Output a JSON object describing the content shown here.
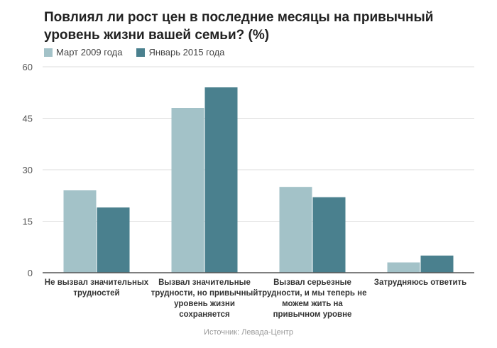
{
  "title": "Повлиял ли рост цен в последние месяцы на привычный уровень жизни вашей семьи? (%)",
  "source": "Источник: Левада-Центр",
  "colors": {
    "series1": "#a3c2c8",
    "series2": "#4a808e",
    "grid": "#dddddd",
    "axis": "#555555"
  },
  "chart_data": {
    "type": "bar",
    "title": "Повлиял ли рост цен в последние месяцы на привычный уровень жизни вашей семьи? (%)",
    "xlabel": "",
    "ylabel": "",
    "ylim": [
      0,
      60
    ],
    "yticks": [
      "60",
      "45",
      "30",
      "15",
      "0"
    ],
    "ytick_values": [
      60,
      45,
      30,
      15,
      0
    ],
    "grid": true,
    "legend": "top-left",
    "categories": [
      [
        "Не вызвал значительных",
        "трудностей"
      ],
      [
        "Вызвал значительные",
        "трудности, но привычный",
        "уровень жизни",
        "сохраняется"
      ],
      [
        "Вызвал серьезные",
        "трудности, и мы теперь не",
        "можем жить на",
        "привычном уровне"
      ],
      [
        "Затрудняюсь ответить"
      ]
    ],
    "series": [
      {
        "name": "Март 2009 года",
        "values": [
          24,
          48,
          25,
          3
        ]
      },
      {
        "name": "Январь 2015 года",
        "values": [
          19,
          54,
          22,
          5
        ]
      }
    ]
  }
}
